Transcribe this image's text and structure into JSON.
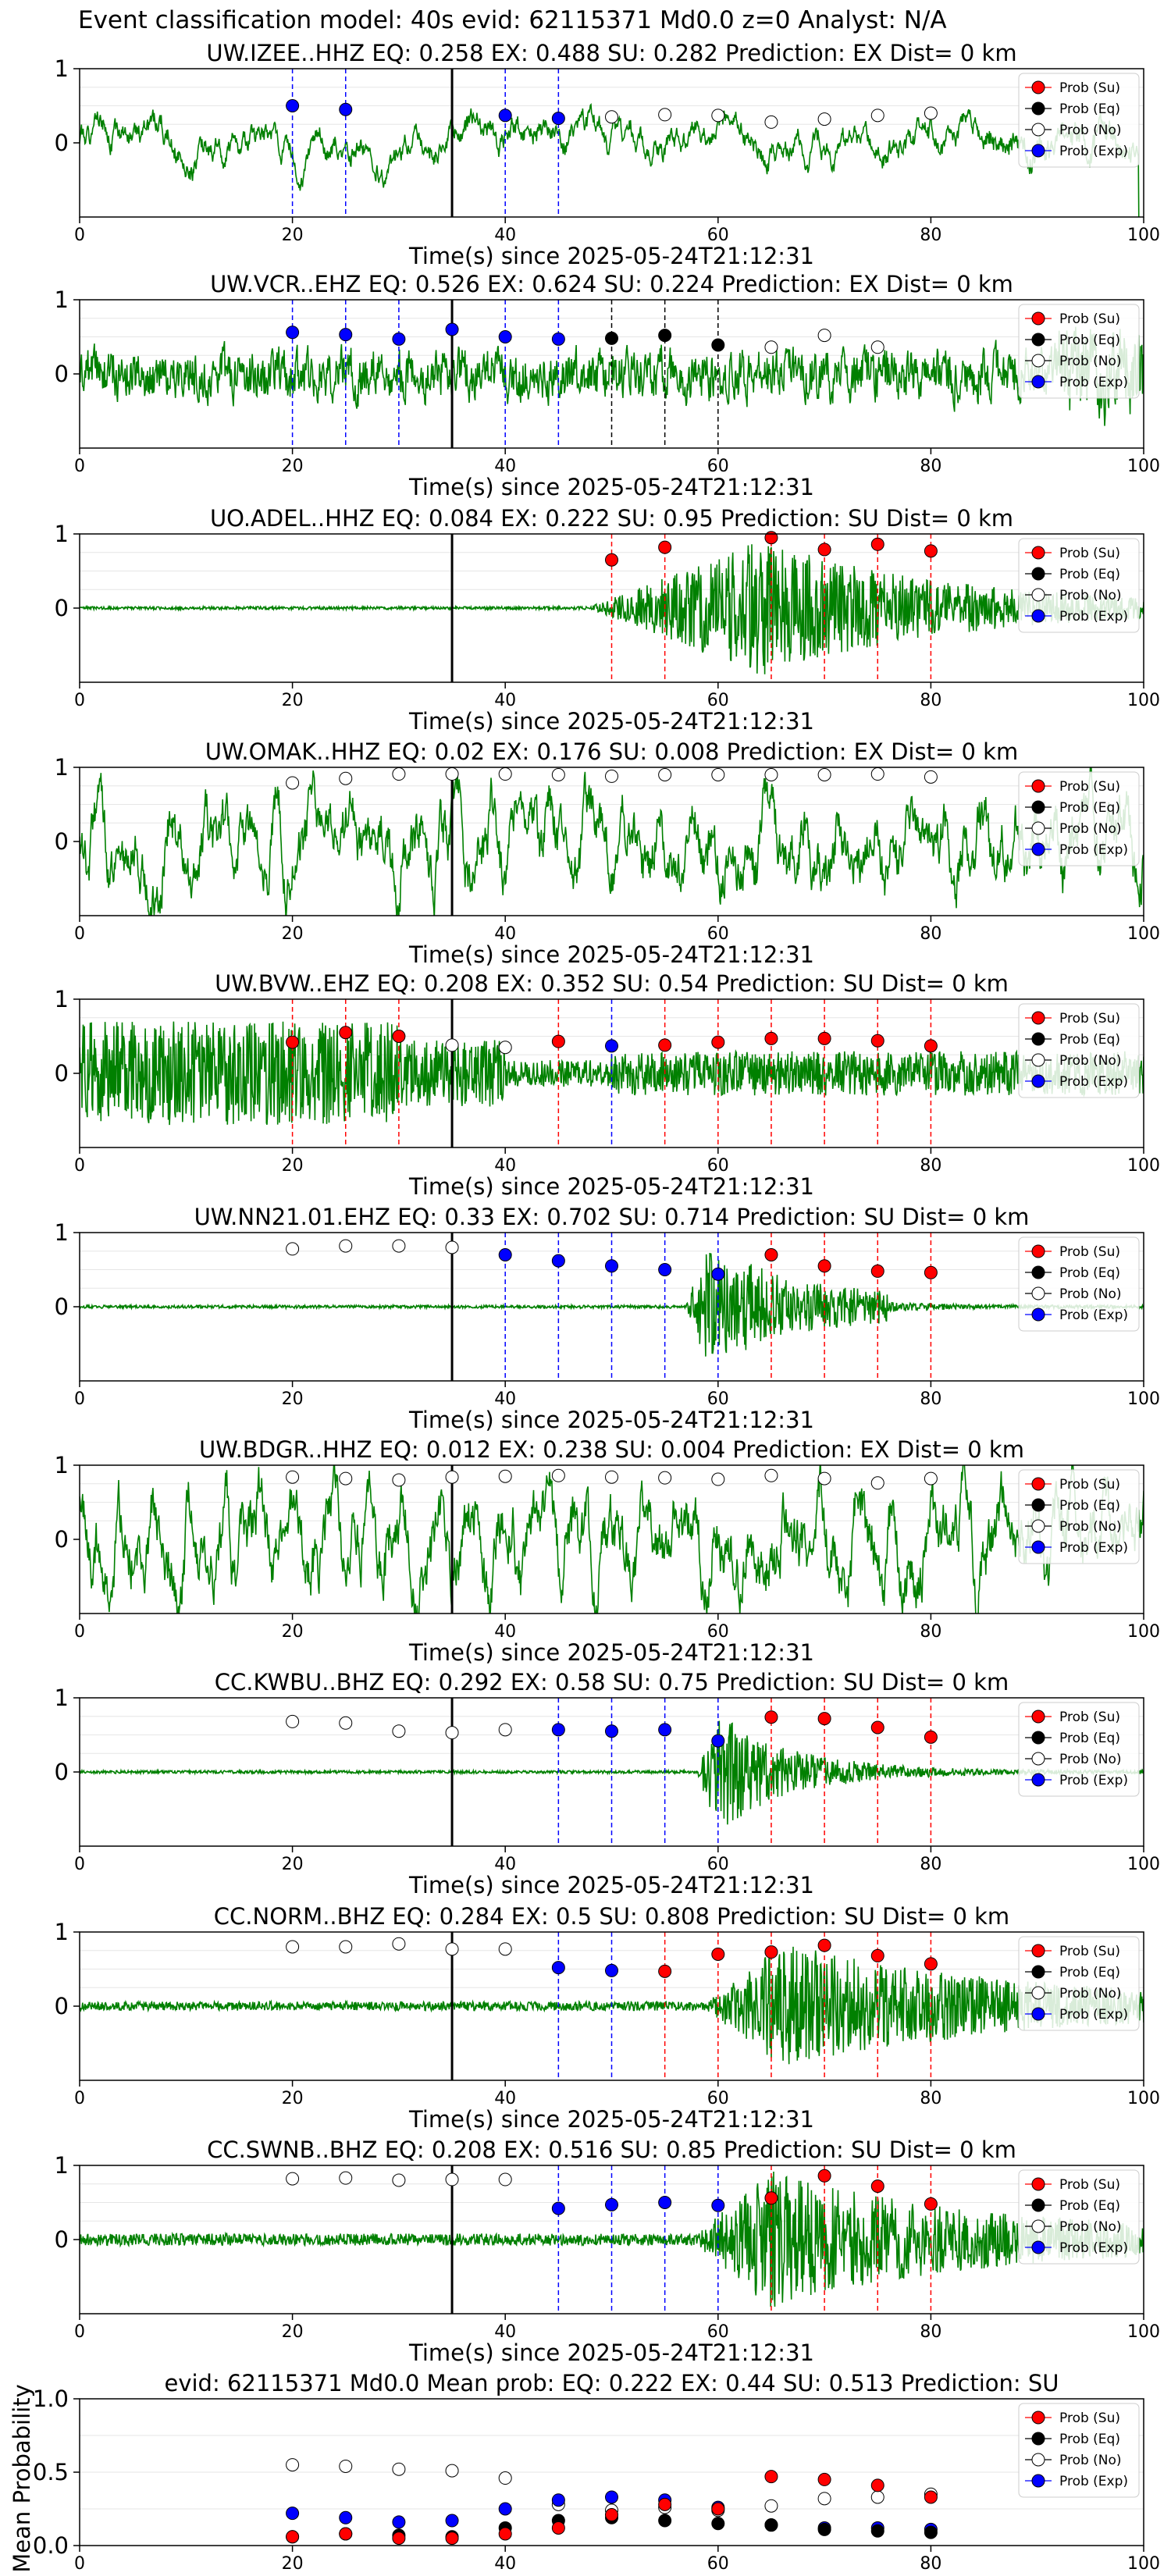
{
  "main_title": "Event classification model: 40s evid: 62115371 Md0.0 z=0 Analyst: N/A",
  "legend": {
    "labels": [
      "Prob (Su)",
      "Prob (Eq)",
      "Prob (No)",
      "Prob (Exp)"
    ],
    "colors": [
      "#ff0000",
      "#000000",
      "#ffffff",
      "#0000ff"
    ]
  },
  "colors": {
    "waveform": "#008000",
    "su": "#ff0000",
    "eq": "#000000",
    "no": "#ffffff",
    "exp": "#0000ff",
    "event_line": "#000000"
  },
  "chart_data": [
    {
      "type": "line",
      "title": "UW.IZEE..HHZ   EQ: 0.258  EX: 0.488  SU: 0.282   Prediction: EX    Dist= 0 km",
      "xlabel": "Time(s) since 2025-05-24T21:12:31",
      "ylabel": "",
      "xlim": [
        0,
        100
      ],
      "ylim": [
        -1,
        1
      ],
      "yticks": [
        0,
        1
      ],
      "xticks": [
        0,
        20,
        40,
        60,
        80,
        100
      ],
      "event_line_x": 35,
      "wave": {
        "amplitude": 0.06,
        "seed": 1,
        "style": "quiet",
        "end_spike": true
      },
      "points": [
        {
          "x": 20,
          "p": 0.5,
          "c": "exp"
        },
        {
          "x": 25,
          "p": 0.45,
          "c": "exp"
        },
        {
          "x": 40,
          "p": 0.37,
          "c": "exp"
        },
        {
          "x": 45,
          "p": 0.33,
          "c": "exp"
        },
        {
          "x": 50,
          "p": 0.35,
          "c": "no"
        },
        {
          "x": 55,
          "p": 0.38,
          "c": "no"
        },
        {
          "x": 60,
          "p": 0.37,
          "c": "no"
        },
        {
          "x": 65,
          "p": 0.28,
          "c": "no"
        },
        {
          "x": 70,
          "p": 0.32,
          "c": "no"
        },
        {
          "x": 75,
          "p": 0.37,
          "c": "no"
        },
        {
          "x": 80,
          "p": 0.4,
          "c": "no"
        }
      ]
    },
    {
      "type": "line",
      "title": "UW.VCR..EHZ   EQ: 0.526  EX: 0.624  SU: 0.224   Prediction: EX    Dist= 0 km",
      "xlabel": "Time(s) since 2025-05-24T21:12:31",
      "ylabel": "",
      "xlim": [
        0,
        100
      ],
      "ylim": [
        -1,
        1
      ],
      "yticks": [
        0,
        1
      ],
      "xticks": [
        0,
        20,
        40,
        60,
        80,
        100
      ],
      "event_line_x": 35,
      "wave": {
        "amplitude": 0.35,
        "seed": 2,
        "style": "noisy"
      },
      "points": [
        {
          "x": 20,
          "p": 0.56,
          "c": "exp"
        },
        {
          "x": 25,
          "p": 0.53,
          "c": "exp"
        },
        {
          "x": 30,
          "p": 0.47,
          "c": "exp"
        },
        {
          "x": 35,
          "p": 0.6,
          "c": "exp"
        },
        {
          "x": 40,
          "p": 0.5,
          "c": "exp"
        },
        {
          "x": 45,
          "p": 0.47,
          "c": "exp"
        },
        {
          "x": 50,
          "p": 0.48,
          "c": "eq"
        },
        {
          "x": 55,
          "p": 0.52,
          "c": "eq"
        },
        {
          "x": 60,
          "p": 0.39,
          "c": "eq"
        },
        {
          "x": 65,
          "p": 0.36,
          "c": "no"
        },
        {
          "x": 70,
          "p": 0.52,
          "c": "no"
        },
        {
          "x": 75,
          "p": 0.36,
          "c": "no"
        }
      ]
    },
    {
      "type": "line",
      "title": "UO.ADEL..HHZ   EQ: 0.084  EX: 0.222  SU: 0.95   Prediction: SU    Dist= 0 km",
      "xlabel": "Time(s) since 2025-05-24T21:12:31",
      "ylabel": "",
      "xlim": [
        0,
        100
      ],
      "ylim": [
        -1,
        1
      ],
      "yticks": [
        0,
        1
      ],
      "xticks": [
        0,
        20,
        40,
        60,
        80,
        100
      ],
      "event_line_x": 35,
      "wave": {
        "amplitude": 0.02,
        "seed": 3,
        "style": "burst",
        "burst_start": 48,
        "burst_peak": 64,
        "burst_amp": 0.9,
        "burst_decay": 18
      },
      "points": [
        {
          "x": 50,
          "p": 0.65,
          "c": "su"
        },
        {
          "x": 55,
          "p": 0.82,
          "c": "su"
        },
        {
          "x": 65,
          "p": 0.95,
          "c": "su"
        },
        {
          "x": 70,
          "p": 0.79,
          "c": "su"
        },
        {
          "x": 75,
          "p": 0.86,
          "c": "su"
        },
        {
          "x": 80,
          "p": 0.77,
          "c": "su"
        }
      ]
    },
    {
      "type": "line",
      "title": "UW.OMAK..HHZ   EQ: 0.02  EX: 0.176  SU: 0.008   Prediction: EX    Dist= 0 km",
      "xlabel": "Time(s) since 2025-05-24T21:12:31",
      "ylabel": "",
      "xlim": [
        0,
        100
      ],
      "ylim": [
        -1,
        1
      ],
      "yticks": [
        0,
        1
      ],
      "xticks": [
        0,
        20,
        40,
        60,
        80,
        100
      ],
      "event_line_x": 35,
      "wave": {
        "amplitude": 0.55,
        "seed": 4,
        "style": "swell"
      },
      "points": [
        {
          "x": 20,
          "p": 0.79,
          "c": "no"
        },
        {
          "x": 25,
          "p": 0.85,
          "c": "no"
        },
        {
          "x": 30,
          "p": 0.91,
          "c": "no"
        },
        {
          "x": 35,
          "p": 0.91,
          "c": "no"
        },
        {
          "x": 40,
          "p": 0.91,
          "c": "no"
        },
        {
          "x": 45,
          "p": 0.9,
          "c": "no"
        },
        {
          "x": 50,
          "p": 0.88,
          "c": "no"
        },
        {
          "x": 55,
          "p": 0.9,
          "c": "no"
        },
        {
          "x": 60,
          "p": 0.9,
          "c": "no"
        },
        {
          "x": 65,
          "p": 0.9,
          "c": "no"
        },
        {
          "x": 70,
          "p": 0.9,
          "c": "no"
        },
        {
          "x": 75,
          "p": 0.91,
          "c": "no"
        },
        {
          "x": 80,
          "p": 0.87,
          "c": "no"
        }
      ]
    },
    {
      "type": "line",
      "title": "UW.BVW..EHZ   EQ: 0.208  EX: 0.352  SU: 0.54   Prediction: SU    Dist= 0 km",
      "xlabel": "Time(s) since 2025-05-24T21:12:31",
      "ylabel": "",
      "xlim": [
        0,
        100
      ],
      "ylim": [
        -1,
        1
      ],
      "yticks": [
        0,
        1
      ],
      "xticks": [
        0,
        20,
        40,
        60,
        80,
        100
      ],
      "event_line_x": 35,
      "wave": {
        "amplitude": 0.3,
        "seed": 5,
        "style": "bvw"
      },
      "points": [
        {
          "x": 20,
          "p": 0.42,
          "c": "su"
        },
        {
          "x": 25,
          "p": 0.55,
          "c": "su"
        },
        {
          "x": 30,
          "p": 0.5,
          "c": "su"
        },
        {
          "x": 35,
          "p": 0.38,
          "c": "no"
        },
        {
          "x": 40,
          "p": 0.35,
          "c": "no"
        },
        {
          "x": 45,
          "p": 0.43,
          "c": "su"
        },
        {
          "x": 50,
          "p": 0.37,
          "c": "exp"
        },
        {
          "x": 55,
          "p": 0.38,
          "c": "su"
        },
        {
          "x": 60,
          "p": 0.42,
          "c": "su"
        },
        {
          "x": 65,
          "p": 0.47,
          "c": "su"
        },
        {
          "x": 70,
          "p": 0.47,
          "c": "su"
        },
        {
          "x": 75,
          "p": 0.44,
          "c": "su"
        },
        {
          "x": 80,
          "p": 0.37,
          "c": "su"
        }
      ]
    },
    {
      "type": "line",
      "title": "UW.NN21.01.EHZ   EQ: 0.33  EX: 0.702  SU: 0.714   Prediction: SU    Dist= 0 km",
      "xlabel": "Time(s) since 2025-05-24T21:12:31",
      "ylabel": "",
      "xlim": [
        0,
        100
      ],
      "ylim": [
        -1,
        1
      ],
      "yticks": [
        0,
        1
      ],
      "xticks": [
        0,
        20,
        40,
        60,
        80,
        100
      ],
      "event_line_x": 35,
      "wave": {
        "amplitude": 0.02,
        "seed": 6,
        "style": "burst",
        "burst_start": 57,
        "burst_peak": 59,
        "burst_amp": 0.85,
        "burst_decay": 6,
        "tail_amp": 0.25,
        "tail_len": 14
      },
      "points": [
        {
          "x": 20,
          "p": 0.78,
          "c": "no"
        },
        {
          "x": 25,
          "p": 0.82,
          "c": "no"
        },
        {
          "x": 30,
          "p": 0.82,
          "c": "no"
        },
        {
          "x": 35,
          "p": 0.8,
          "c": "no"
        },
        {
          "x": 40,
          "p": 0.7,
          "c": "exp"
        },
        {
          "x": 45,
          "p": 0.62,
          "c": "exp"
        },
        {
          "x": 50,
          "p": 0.55,
          "c": "exp"
        },
        {
          "x": 55,
          "p": 0.5,
          "c": "exp"
        },
        {
          "x": 60,
          "p": 0.44,
          "c": "exp"
        },
        {
          "x": 65,
          "p": 0.7,
          "c": "su"
        },
        {
          "x": 70,
          "p": 0.55,
          "c": "su"
        },
        {
          "x": 75,
          "p": 0.48,
          "c": "su"
        },
        {
          "x": 80,
          "p": 0.46,
          "c": "su"
        }
      ]
    },
    {
      "type": "line",
      "title": "UW.BDGR..HHZ   EQ: 0.012  EX: 0.238  SU: 0.004   Prediction: EX    Dist= 0 km",
      "xlabel": "Time(s) since 2025-05-24T21:12:31",
      "ylabel": "",
      "xlim": [
        0,
        100
      ],
      "ylim": [
        -1,
        1
      ],
      "yticks": [
        0,
        1
      ],
      "xticks": [
        0,
        20,
        40,
        60,
        80,
        100
      ],
      "event_line_x": 35,
      "wave": {
        "amplitude": 0.6,
        "seed": 7,
        "style": "swell"
      },
      "points": [
        {
          "x": 20,
          "p": 0.84,
          "c": "no"
        },
        {
          "x": 25,
          "p": 0.82,
          "c": "no"
        },
        {
          "x": 30,
          "p": 0.8,
          "c": "no"
        },
        {
          "x": 35,
          "p": 0.84,
          "c": "no"
        },
        {
          "x": 40,
          "p": 0.85,
          "c": "no"
        },
        {
          "x": 45,
          "p": 0.86,
          "c": "no"
        },
        {
          "x": 50,
          "p": 0.84,
          "c": "no"
        },
        {
          "x": 55,
          "p": 0.83,
          "c": "no"
        },
        {
          "x": 60,
          "p": 0.81,
          "c": "no"
        },
        {
          "x": 65,
          "p": 0.86,
          "c": "no"
        },
        {
          "x": 70,
          "p": 0.82,
          "c": "no"
        },
        {
          "x": 75,
          "p": 0.76,
          "c": "no"
        },
        {
          "x": 80,
          "p": 0.82,
          "c": "no"
        }
      ]
    },
    {
      "type": "line",
      "title": "CC.KWBU..BHZ   EQ: 0.292  EX: 0.58  SU: 0.75   Prediction: SU    Dist= 0 km",
      "xlabel": "Time(s) since 2025-05-24T21:12:31",
      "ylabel": "",
      "xlim": [
        0,
        100
      ],
      "ylim": [
        -1,
        1
      ],
      "yticks": [
        0,
        1
      ],
      "xticks": [
        0,
        20,
        40,
        60,
        80,
        100
      ],
      "event_line_x": 35,
      "wave": {
        "amplitude": 0.02,
        "seed": 8,
        "style": "burst",
        "burst_start": 58,
        "burst_peak": 60,
        "burst_amp": 0.8,
        "burst_decay": 7
      },
      "points": [
        {
          "x": 20,
          "p": 0.68,
          "c": "no"
        },
        {
          "x": 25,
          "p": 0.66,
          "c": "no"
        },
        {
          "x": 30,
          "p": 0.55,
          "c": "no"
        },
        {
          "x": 35,
          "p": 0.53,
          "c": "no"
        },
        {
          "x": 40,
          "p": 0.57,
          "c": "no"
        },
        {
          "x": 45,
          "p": 0.57,
          "c": "exp"
        },
        {
          "x": 50,
          "p": 0.55,
          "c": "exp"
        },
        {
          "x": 55,
          "p": 0.57,
          "c": "exp"
        },
        {
          "x": 60,
          "p": 0.42,
          "c": "exp"
        },
        {
          "x": 65,
          "p": 0.74,
          "c": "su"
        },
        {
          "x": 70,
          "p": 0.72,
          "c": "su"
        },
        {
          "x": 75,
          "p": 0.6,
          "c": "su"
        },
        {
          "x": 80,
          "p": 0.47,
          "c": "su"
        }
      ]
    },
    {
      "type": "line",
      "title": "CC.NORM..BHZ   EQ: 0.284  EX: 0.5  SU: 0.808   Prediction: SU    Dist= 0 km",
      "xlabel": "Time(s) since 2025-05-24T21:12:31",
      "ylabel": "",
      "xlim": [
        0,
        100
      ],
      "ylim": [
        -1,
        1
      ],
      "yticks": [
        0,
        1
      ],
      "xticks": [
        0,
        20,
        40,
        60,
        80,
        100
      ],
      "event_line_x": 35,
      "wave": {
        "amplitude": 0.06,
        "seed": 9,
        "style": "burst",
        "burst_start": 59,
        "burst_peak": 66,
        "burst_amp": 0.8,
        "burst_decay": 22
      },
      "points": [
        {
          "x": 20,
          "p": 0.8,
          "c": "no"
        },
        {
          "x": 25,
          "p": 0.8,
          "c": "no"
        },
        {
          "x": 30,
          "p": 0.84,
          "c": "no"
        },
        {
          "x": 35,
          "p": 0.77,
          "c": "no"
        },
        {
          "x": 40,
          "p": 0.77,
          "c": "no"
        },
        {
          "x": 45,
          "p": 0.52,
          "c": "exp"
        },
        {
          "x": 50,
          "p": 0.48,
          "c": "exp"
        },
        {
          "x": 55,
          "p": 0.47,
          "c": "su"
        },
        {
          "x": 60,
          "p": 0.7,
          "c": "su"
        },
        {
          "x": 65,
          "p": 0.73,
          "c": "su"
        },
        {
          "x": 70,
          "p": 0.82,
          "c": "su"
        },
        {
          "x": 75,
          "p": 0.68,
          "c": "su"
        },
        {
          "x": 80,
          "p": 0.57,
          "c": "su"
        }
      ]
    },
    {
      "type": "line",
      "title": "CC.SWNB..BHZ   EQ: 0.208  EX: 0.516  SU: 0.85   Prediction: SU    Dist= 0 km",
      "xlabel": "Time(s) since 2025-05-24T21:12:31",
      "ylabel": "",
      "xlim": [
        0,
        100
      ],
      "ylim": [
        -1,
        1
      ],
      "yticks": [
        0,
        1
      ],
      "xticks": [
        0,
        20,
        40,
        60,
        80,
        100
      ],
      "event_line_x": 35,
      "wave": {
        "amplitude": 0.08,
        "seed": 10,
        "style": "burst",
        "burst_start": 58,
        "burst_peak": 65,
        "burst_amp": 0.85,
        "burst_decay": 20
      },
      "points": [
        {
          "x": 20,
          "p": 0.82,
          "c": "no"
        },
        {
          "x": 25,
          "p": 0.83,
          "c": "no"
        },
        {
          "x": 30,
          "p": 0.8,
          "c": "no"
        },
        {
          "x": 35,
          "p": 0.81,
          "c": "no"
        },
        {
          "x": 40,
          "p": 0.81,
          "c": "no"
        },
        {
          "x": 45,
          "p": 0.42,
          "c": "exp"
        },
        {
          "x": 50,
          "p": 0.47,
          "c": "exp"
        },
        {
          "x": 55,
          "p": 0.5,
          "c": "exp"
        },
        {
          "x": 60,
          "p": 0.46,
          "c": "exp"
        },
        {
          "x": 65,
          "p": 0.56,
          "c": "su"
        },
        {
          "x": 70,
          "p": 0.86,
          "c": "su"
        },
        {
          "x": 75,
          "p": 0.72,
          "c": "su"
        },
        {
          "x": 80,
          "p": 0.48,
          "c": "su"
        }
      ]
    },
    {
      "type": "scatter",
      "title": "evid: 62115371   Md0.0   Mean prob:    EQ: 0.222  EX: 0.44  SU: 0.513   Prediction: SU",
      "xlabel": "",
      "ylabel": "Mean Probability",
      "xlim": [
        0,
        100
      ],
      "ylim": [
        0,
        1
      ],
      "yticks": [
        0.0,
        0.5,
        1.0
      ],
      "xticks": [
        0,
        20,
        40,
        60,
        80,
        100
      ],
      "x": [
        20,
        25,
        30,
        35,
        40,
        45,
        50,
        55,
        60,
        65,
        70,
        75,
        80
      ],
      "series": [
        {
          "name": "Prob (No)",
          "c": "no",
          "values": [
            0.55,
            0.54,
            0.52,
            0.51,
            0.46,
            0.28,
            0.24,
            0.26,
            0.24,
            0.27,
            0.32,
            0.33,
            0.35
          ]
        },
        {
          "name": "Prob (Exp)",
          "c": "exp",
          "values": [
            0.22,
            0.19,
            0.16,
            0.17,
            0.25,
            0.31,
            0.33,
            0.31,
            0.26,
            0.14,
            0.12,
            0.12,
            0.11
          ]
        },
        {
          "name": "Prob (Eq)",
          "c": "eq",
          "values": [
            0.06,
            0.08,
            0.07,
            0.06,
            0.12,
            0.17,
            0.19,
            0.17,
            0.15,
            0.14,
            0.11,
            0.1,
            0.09
          ]
        },
        {
          "name": "Prob (Su)",
          "c": "su",
          "values": [
            0.06,
            0.08,
            0.05,
            0.05,
            0.08,
            0.12,
            0.21,
            0.28,
            0.25,
            0.47,
            0.45,
            0.41,
            0.33
          ]
        }
      ]
    }
  ]
}
